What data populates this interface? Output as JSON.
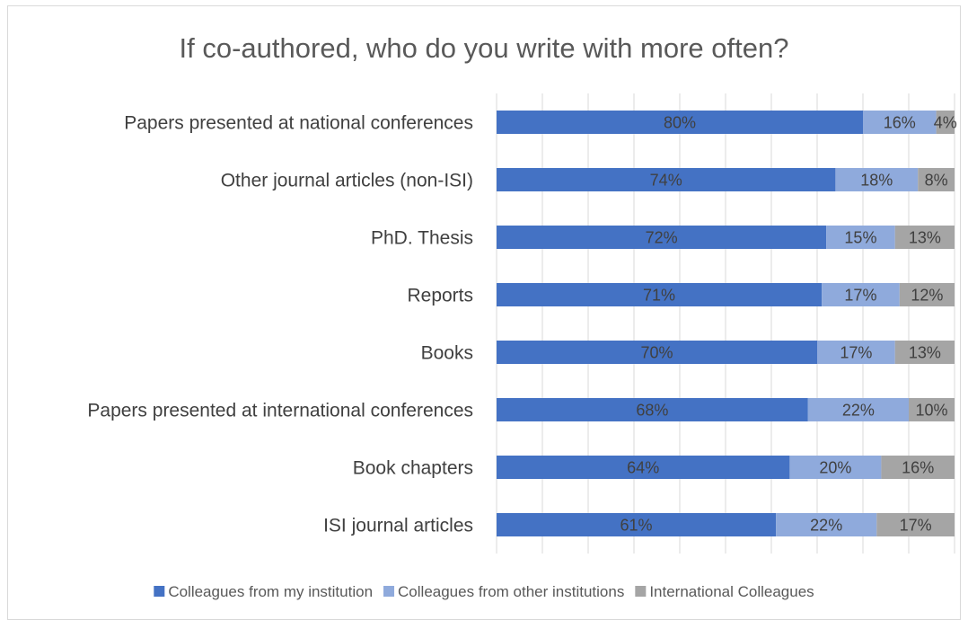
{
  "chart_data": {
    "type": "bar",
    "orientation": "horizontal",
    "stacked": "percent",
    "title": "If co-authored, who do you write with more often?",
    "categories": [
      "Papers presented at national conferences",
      "Other journal articles (non-ISI)",
      "PhD. Thesis",
      "Reports",
      "Books",
      "Papers presented at international conferences",
      "Book chapters",
      "ISI journal articles"
    ],
    "series": [
      {
        "name": "Colleagues from my institution",
        "color": "#4472c4",
        "values": [
          80,
          74,
          72,
          71,
          70,
          68,
          64,
          61
        ],
        "labels": [
          "80%",
          "74%",
          "72%",
          "71%",
          "70%",
          "68%",
          "64%",
          "61%"
        ]
      },
      {
        "name": "Colleagues from other institutions",
        "color": "#8faadc",
        "values": [
          16,
          18,
          15,
          17,
          17,
          22,
          20,
          22
        ],
        "labels": [
          "16%",
          "18%",
          "15%",
          "17%",
          "17%",
          "22%",
          "20%",
          "22%"
        ]
      },
      {
        "name": "International Colleagues",
        "color": "#a5a5a5",
        "values": [
          4,
          8,
          13,
          12,
          13,
          10,
          16,
          17
        ],
        "labels": [
          "4%",
          "8%",
          "13%",
          "12%",
          "13%",
          "10%",
          "16%",
          "17%"
        ]
      }
    ],
    "xlim": [
      0,
      100
    ],
    "grid": true,
    "legend_position": "bottom"
  }
}
